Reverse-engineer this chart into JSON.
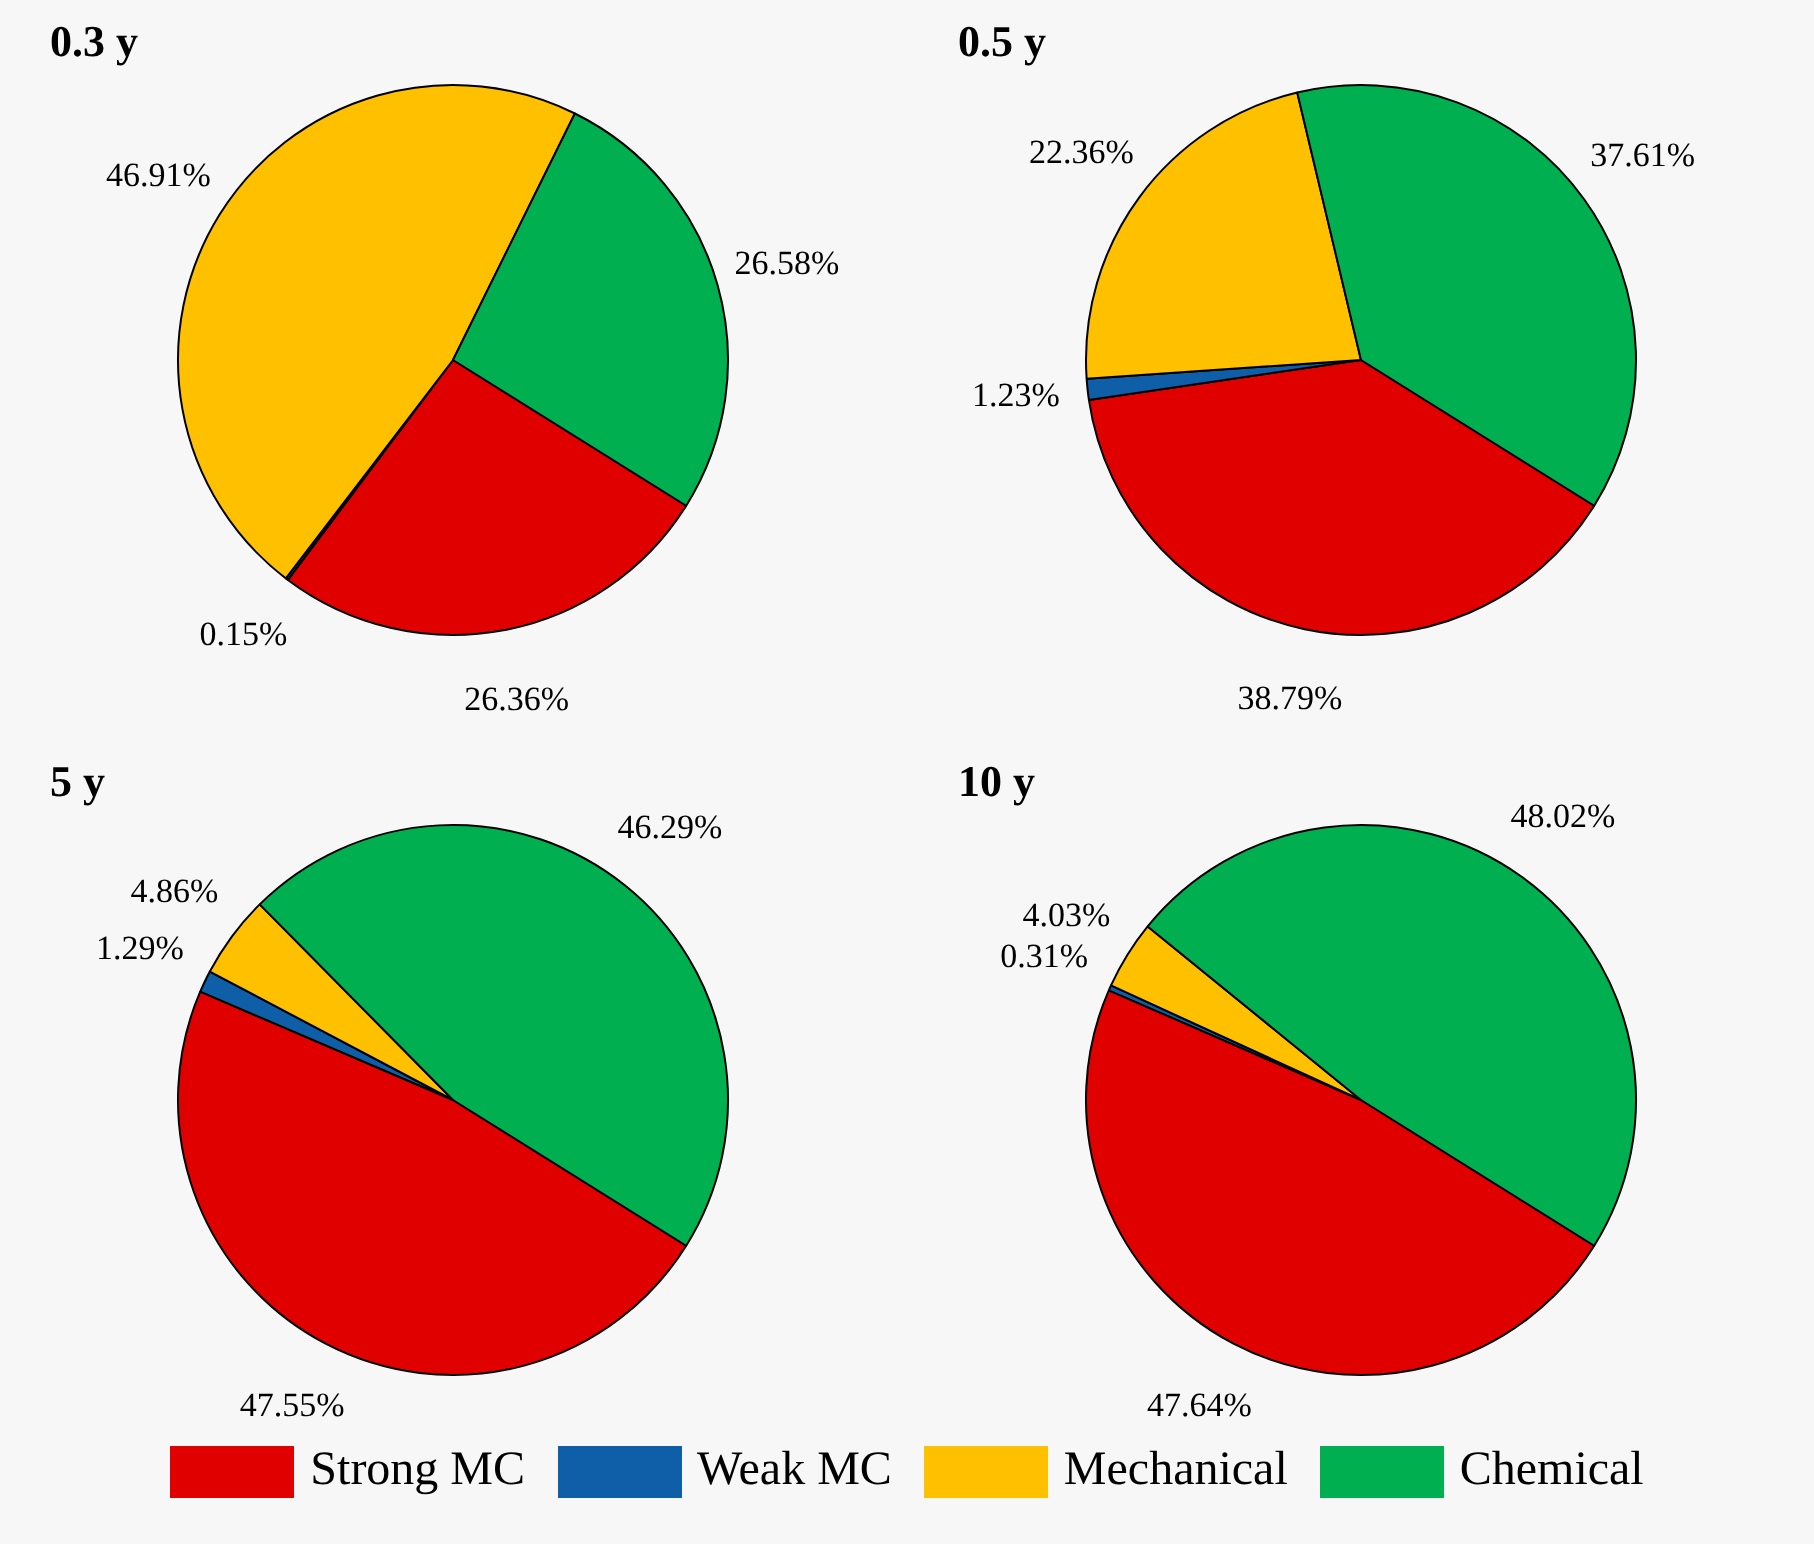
{
  "chart_data": [
    {
      "type": "pie",
      "title": "0.3 y",
      "categories": [
        "Strong MC",
        "Weak MC",
        "Mechanical",
        "Chemical"
      ],
      "values": [
        26.36,
        0.15,
        46.91,
        26.58
      ],
      "colors": [
        "#e00000",
        "#0e5ea8",
        "#ffc000",
        "#00b050"
      ],
      "value_labels": [
        "26.36%",
        "0.15%",
        "46.91%",
        "26.58%"
      ],
      "legend": "bottom"
    },
    {
      "type": "pie",
      "title": "0.5 y",
      "categories": [
        null,
        null,
        null,
        null
      ],
      "values": [
        38.79,
        1.23,
        22.36,
        37.61
      ],
      "colors": [
        "#e00000",
        "#0e5ea8",
        "#ffc000",
        "#00b050"
      ],
      "value_labels": [
        "38.79%",
        "1.23%",
        "22.36%",
        "37.61%"
      ]
    },
    {
      "type": "pie",
      "title": "5 y",
      "categories": [
        null,
        null,
        null,
        null
      ],
      "values": [
        47.55,
        1.29,
        4.86,
        46.29
      ],
      "colors": [
        "#e00000",
        "#0e5ea8",
        "#ffc000",
        "#00b050"
      ],
      "value_labels": [
        "47.55%",
        "1.29%",
        "4.86%",
        "46.29%"
      ]
    },
    {
      "type": "pie",
      "title": "10 y",
      "categories": [
        null,
        null,
        null,
        null
      ],
      "values": [
        47.64,
        0.31,
        4.03,
        48.02
      ],
      "colors": [
        "#e00000",
        "#0e5ea8",
        "#ffc000",
        "#00b050"
      ],
      "value_labels": [
        "47.64%",
        "0.31%",
        "4.03%",
        "48.02%"
      ]
    }
  ]
}
